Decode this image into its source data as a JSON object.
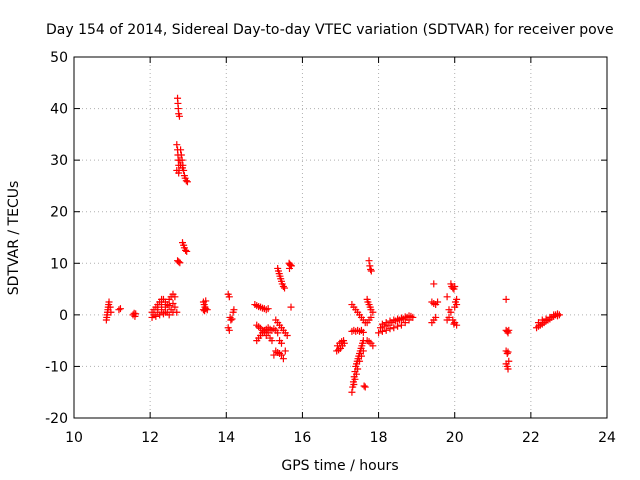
{
  "chart_data": {
    "type": "scatter",
    "title": "Day 154 of 2014, Sidereal Day-to-day VTEC variation (SDTVAR) for receiver pove",
    "xlabel": "GPS time / hours",
    "ylabel": "SDTVAR / TECUs",
    "xlim": [
      10,
      24
    ],
    "ylim": [
      -20,
      50
    ],
    "xticks": [
      10,
      12,
      14,
      16,
      18,
      20,
      22,
      24
    ],
    "yticks": [
      -20,
      -10,
      0,
      10,
      20,
      30,
      40,
      50
    ],
    "grid": true,
    "marker": "+",
    "marker_color": "#ff0000",
    "series": [
      {
        "name": "SDTVAR",
        "points": [
          [
            10.85,
            -1
          ],
          [
            10.86,
            -0.5
          ],
          [
            10.87,
            0
          ],
          [
            10.88,
            0.5
          ],
          [
            10.89,
            1
          ],
          [
            10.9,
            1.5
          ],
          [
            10.91,
            2
          ],
          [
            10.92,
            2.5
          ],
          [
            10.95,
            1.5
          ],
          [
            10.97,
            0.5
          ],
          [
            11.18,
            1
          ],
          [
            11.22,
            1.2
          ],
          [
            11.55,
            0
          ],
          [
            11.58,
            0.3
          ],
          [
            11.6,
            -0.3
          ],
          [
            11.62,
            0.2
          ],
          [
            12.05,
            0.5
          ],
          [
            12.1,
            1
          ],
          [
            12.15,
            1.5
          ],
          [
            12.2,
            2
          ],
          [
            12.25,
            2.5
          ],
          [
            12.3,
            3
          ],
          [
            12.35,
            3
          ],
          [
            12.4,
            2.5
          ],
          [
            12.45,
            2
          ],
          [
            12.5,
            3
          ],
          [
            12.55,
            3.5
          ],
          [
            12.6,
            4
          ],
          [
            12.65,
            3.5
          ],
          [
            12.1,
            0
          ],
          [
            12.2,
            0.5
          ],
          [
            12.3,
            1
          ],
          [
            12.4,
            0.5
          ],
          [
            12.5,
            0
          ],
          [
            12.6,
            0.5
          ],
          [
            12.05,
            -0.5
          ],
          [
            12.15,
            -0.3
          ],
          [
            12.25,
            0
          ],
          [
            12.35,
            0.2
          ],
          [
            12.45,
            0.5
          ],
          [
            12.55,
            1
          ],
          [
            12.65,
            1.5
          ],
          [
            12.7,
            0.5
          ],
          [
            12.2,
            1.5
          ],
          [
            12.3,
            2
          ],
          [
            12.4,
            1.5
          ],
          [
            12.5,
            1.8
          ],
          [
            12.6,
            2.2
          ],
          [
            12.72,
            42
          ],
          [
            12.73,
            41
          ],
          [
            12.74,
            40
          ],
          [
            12.75,
            39
          ],
          [
            12.77,
            38.5
          ],
          [
            12.7,
            33
          ],
          [
            12.72,
            32
          ],
          [
            12.73,
            31
          ],
          [
            12.74,
            30
          ],
          [
            12.75,
            29
          ],
          [
            12.76,
            28
          ],
          [
            12.8,
            32
          ],
          [
            12.82,
            31
          ],
          [
            12.84,
            30
          ],
          [
            12.86,
            29
          ],
          [
            12.88,
            28
          ],
          [
            12.9,
            27
          ],
          [
            12.92,
            26.5
          ],
          [
            12.95,
            26
          ],
          [
            12.98,
            25.8
          ],
          [
            12.78,
            30
          ],
          [
            12.8,
            29
          ],
          [
            12.85,
            28.5
          ],
          [
            12.7,
            28
          ],
          [
            12.75,
            27.5
          ],
          [
            12.85,
            14
          ],
          [
            12.88,
            13.5
          ],
          [
            12.9,
            13
          ],
          [
            12.93,
            12.5
          ],
          [
            12.96,
            12.3
          ],
          [
            12.72,
            10.5
          ],
          [
            12.75,
            10.3
          ],
          [
            12.78,
            10.1
          ],
          [
            13.4,
            2.5
          ],
          [
            13.42,
            2
          ],
          [
            13.44,
            1.5
          ],
          [
            13.46,
            2.7
          ],
          [
            13.4,
            1
          ],
          [
            13.43,
            0.8
          ],
          [
            13.46,
            1.2
          ],
          [
            13.5,
            1
          ],
          [
            14.05,
            4
          ],
          [
            14.08,
            3.5
          ],
          [
            14.1,
            -0.5
          ],
          [
            14.12,
            -1
          ],
          [
            14.05,
            -2.5
          ],
          [
            14.08,
            -3
          ],
          [
            14.15,
            -0.8
          ],
          [
            14.18,
            0.5
          ],
          [
            14.2,
            1
          ],
          [
            14.75,
            2
          ],
          [
            14.8,
            1.8
          ],
          [
            14.85,
            1.6
          ],
          [
            14.9,
            1.5
          ],
          [
            14.95,
            1.3
          ],
          [
            15.0,
            1.2
          ],
          [
            15.05,
            1
          ],
          [
            15.1,
            1.2
          ],
          [
            14.8,
            -2
          ],
          [
            14.85,
            -2.3
          ],
          [
            14.9,
            -2.6
          ],
          [
            14.95,
            -3
          ],
          [
            15.0,
            -3.3
          ],
          [
            15.05,
            -2.8
          ],
          [
            15.1,
            -2.5
          ],
          [
            15.15,
            -2.8
          ],
          [
            15.2,
            -3
          ],
          [
            15.25,
            -2.7
          ],
          [
            14.8,
            -5
          ],
          [
            14.85,
            -4.5
          ],
          [
            14.9,
            -4
          ],
          [
            14.95,
            -3.5
          ],
          [
            15.0,
            -3
          ],
          [
            15.05,
            -4
          ],
          [
            15.1,
            -3.5
          ],
          [
            15.15,
            -4.5
          ],
          [
            15.2,
            -5
          ],
          [
            15.3,
            -1
          ],
          [
            15.35,
            -1.5
          ],
          [
            15.4,
            -2
          ],
          [
            15.45,
            -2.5
          ],
          [
            15.5,
            -3
          ],
          [
            15.55,
            -3.5
          ],
          [
            15.6,
            -4
          ],
          [
            15.4,
            -5
          ],
          [
            15.45,
            -5.5
          ],
          [
            15.3,
            -3
          ],
          [
            15.35,
            -3.5
          ],
          [
            15.3,
            -7
          ],
          [
            15.35,
            -7.3
          ],
          [
            15.4,
            -7.5
          ],
          [
            15.45,
            -7.8
          ],
          [
            15.5,
            -8.5
          ],
          [
            15.55,
            -7
          ],
          [
            15.25,
            -7.8
          ],
          [
            15.35,
            9
          ],
          [
            15.37,
            8.5
          ],
          [
            15.39,
            8
          ],
          [
            15.41,
            7.5
          ],
          [
            15.43,
            7
          ],
          [
            15.45,
            6.5
          ],
          [
            15.47,
            6
          ],
          [
            15.5,
            5.5
          ],
          [
            15.53,
            5.2
          ],
          [
            15.65,
            10
          ],
          [
            15.67,
            9.8
          ],
          [
            15.69,
            9.6
          ],
          [
            15.71,
            9.5
          ],
          [
            15.66,
            9
          ],
          [
            15.7,
            1.5
          ],
          [
            16.9,
            -7
          ],
          [
            16.95,
            -6.8
          ],
          [
            17.0,
            -6.5
          ],
          [
            17.05,
            -6
          ],
          [
            17.1,
            -5.5
          ],
          [
            16.92,
            -6
          ],
          [
            16.98,
            -5.5
          ],
          [
            17.03,
            -5.2
          ],
          [
            17.08,
            -5
          ],
          [
            17.3,
            -15
          ],
          [
            17.32,
            -14
          ],
          [
            17.34,
            -13
          ],
          [
            17.36,
            -12
          ],
          [
            17.38,
            -11
          ],
          [
            17.4,
            -10
          ],
          [
            17.42,
            -9.5
          ],
          [
            17.44,
            -9
          ],
          [
            17.46,
            -8.5
          ],
          [
            17.48,
            -8
          ],
          [
            17.5,
            -7.5
          ],
          [
            17.52,
            -7
          ],
          [
            17.54,
            -6.5
          ],
          [
            17.56,
            -6
          ],
          [
            17.58,
            -5.5
          ],
          [
            17.6,
            -5
          ],
          [
            17.35,
            -13.5
          ],
          [
            17.38,
            -12.5
          ],
          [
            17.42,
            -11.5
          ],
          [
            17.45,
            -10.5
          ],
          [
            17.5,
            -9
          ],
          [
            17.55,
            -8
          ],
          [
            17.6,
            -7
          ],
          [
            17.65,
            -14
          ],
          [
            17.62,
            -13.8
          ],
          [
            17.3,
            2
          ],
          [
            17.35,
            1.5
          ],
          [
            17.4,
            1
          ],
          [
            17.45,
            0.5
          ],
          [
            17.5,
            0
          ],
          [
            17.55,
            -0.5
          ],
          [
            17.6,
            -1
          ],
          [
            17.65,
            -1.5
          ],
          [
            17.35,
            -3
          ],
          [
            17.4,
            -3.2
          ],
          [
            17.45,
            -3
          ],
          [
            17.5,
            -3.2
          ],
          [
            17.55,
            -3
          ],
          [
            17.6,
            -3.4
          ],
          [
            17.3,
            -3.2
          ],
          [
            17.75,
            10.5
          ],
          [
            17.77,
            9.5
          ],
          [
            17.79,
            8.8
          ],
          [
            17.81,
            8.5
          ],
          [
            17.7,
            -5
          ],
          [
            17.75,
            -5.2
          ],
          [
            17.8,
            -5.5
          ],
          [
            17.85,
            -6
          ],
          [
            17.7,
            -1.5
          ],
          [
            17.75,
            -1
          ],
          [
            17.8,
            -0.5
          ],
          [
            17.7,
            3
          ],
          [
            17.72,
            2.5
          ],
          [
            17.75,
            2
          ],
          [
            17.78,
            1.5
          ],
          [
            17.8,
            1
          ],
          [
            17.85,
            0.5
          ],
          [
            18.0,
            -3.5
          ],
          [
            18.1,
            -3.2
          ],
          [
            18.2,
            -3
          ],
          [
            18.3,
            -2.7
          ],
          [
            18.4,
            -2.5
          ],
          [
            18.5,
            -2.2
          ],
          [
            18.6,
            -2
          ],
          [
            18.7,
            -1.5
          ],
          [
            18.8,
            -1
          ],
          [
            18.9,
            -0.5
          ],
          [
            18.05,
            -2.5
          ],
          [
            18.15,
            -2.2
          ],
          [
            18.25,
            -2
          ],
          [
            18.35,
            -1.5
          ],
          [
            18.45,
            -1.2
          ],
          [
            18.55,
            -1
          ],
          [
            18.65,
            -0.8
          ],
          [
            18.75,
            -0.5
          ],
          [
            18.85,
            -0.3
          ],
          [
            18.1,
            -1.8
          ],
          [
            18.2,
            -1.5
          ],
          [
            18.3,
            -1.2
          ],
          [
            18.4,
            -1
          ],
          [
            18.5,
            -0.8
          ],
          [
            18.6,
            -0.6
          ],
          [
            18.7,
            -0.4
          ],
          [
            18.8,
            -0.2
          ],
          [
            19.45,
            6
          ],
          [
            19.4,
            2.5
          ],
          [
            19.45,
            2.2
          ],
          [
            19.5,
            2
          ],
          [
            19.55,
            2.5
          ],
          [
            19.4,
            -1.5
          ],
          [
            19.45,
            -1
          ],
          [
            19.5,
            -0.5
          ],
          [
            19.8,
            3.5
          ],
          [
            19.85,
            1
          ],
          [
            19.9,
            0.5
          ],
          [
            19.8,
            -1
          ],
          [
            19.85,
            -0.5
          ],
          [
            19.9,
            6
          ],
          [
            19.92,
            5.5
          ],
          [
            19.95,
            5.2
          ],
          [
            19.98,
            5
          ],
          [
            20.0,
            5.5
          ],
          [
            20.05,
            3
          ],
          [
            20.02,
            2.5
          ],
          [
            20.05,
            2
          ],
          [
            20.0,
            1.5
          ],
          [
            19.95,
            -1
          ],
          [
            20.0,
            -1.5
          ],
          [
            20.05,
            -2
          ],
          [
            19.98,
            -1.8
          ],
          [
            21.35,
            3
          ],
          [
            21.35,
            -3
          ],
          [
            21.38,
            -3.2
          ],
          [
            21.4,
            -3.5
          ],
          [
            21.42,
            -3
          ],
          [
            21.35,
            -7
          ],
          [
            21.38,
            -7.5
          ],
          [
            21.4,
            -7.2
          ],
          [
            21.35,
            -9.5
          ],
          [
            21.38,
            -10
          ],
          [
            21.4,
            -10.5
          ],
          [
            21.42,
            -9
          ],
          [
            22.15,
            -2.5
          ],
          [
            22.2,
            -2.2
          ],
          [
            22.25,
            -2
          ],
          [
            22.3,
            -1.8
          ],
          [
            22.35,
            -1.5
          ],
          [
            22.4,
            -1.2
          ],
          [
            22.45,
            -1
          ],
          [
            22.5,
            -0.8
          ],
          [
            22.55,
            -0.5
          ],
          [
            22.6,
            -0.3
          ],
          [
            22.65,
            0
          ],
          [
            22.7,
            0.2
          ],
          [
            22.75,
            0
          ],
          [
            22.2,
            -1.5
          ],
          [
            22.3,
            -1
          ],
          [
            22.4,
            -0.8
          ],
          [
            22.5,
            -0.5
          ],
          [
            22.6,
            0
          ],
          [
            22.7,
            -0.2
          ]
        ]
      }
    ]
  }
}
